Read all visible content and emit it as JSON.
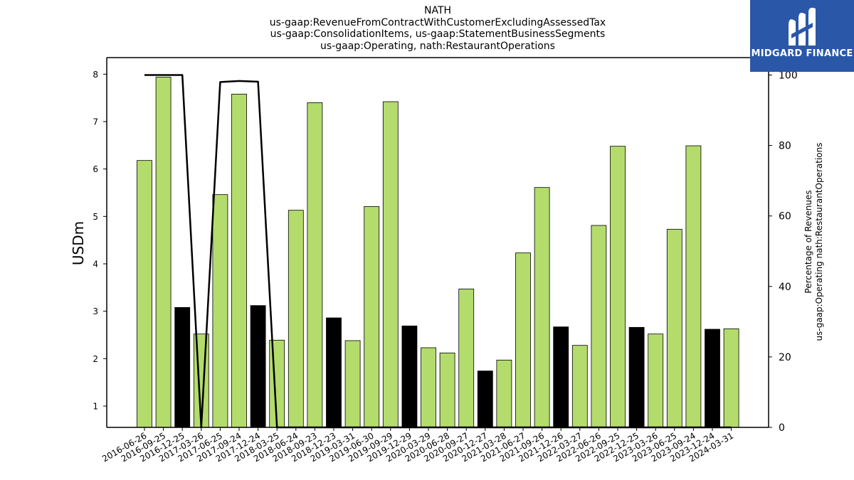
{
  "chart_data": {
    "type": "bar",
    "title_lines": [
      "NATH",
      "us-gaap:RevenueFromContractWithCustomerExcludingAssessedTax",
      "us-gaap:ConsolidationItems, us-gaap:StatementBusinessSegments",
      "us-gaap:Operating, nath:RestaurantOperations"
    ],
    "ylabel": "USDm",
    "ylabel_right": [
      "Percentage of Revenues",
      "us-gaap:Operating nath:RestaurantOperations"
    ],
    "ylim": [
      0.55,
      8.35
    ],
    "yticks": [
      1,
      2,
      3,
      4,
      5,
      6,
      7,
      8
    ],
    "y2lim": [
      0,
      100
    ],
    "y2ticks": [
      0,
      20,
      40,
      60,
      80,
      100
    ],
    "categories": [
      "2016-06-26",
      "2016-09-25",
      "2016-12-25",
      "2017-03-26",
      "2017-06-25",
      "2017-09-24",
      "2017-12-24",
      "2018-03-25",
      "2018-06-24",
      "2018-09-23",
      "2018-12-23",
      "2019-03-31",
      "2019-06-30",
      "2019-09-29",
      "2019-12-29",
      "2020-03-29",
      "2020-06-28",
      "2020-09-27",
      "2020-12-27",
      "2021-03-28",
      "2021-06-27",
      "2021-09-26",
      "2021-12-26",
      "2022-03-27",
      "2022-06-26",
      "2022-09-25",
      "2022-12-25",
      "2023-03-26",
      "2023-06-25",
      "2023-09-24",
      "2023-12-24",
      "2024-03-31"
    ],
    "bars": [
      {
        "x": "2016-06-26",
        "value": 6.18,
        "color": "#b3dc6c"
      },
      {
        "x": "2016-09-25",
        "value": 7.94,
        "color": "#b3dc6c"
      },
      {
        "x": "2016-12-25",
        "value": 3.08,
        "color": "#000000"
      },
      {
        "x": "2017-03-26",
        "value": 2.52,
        "color": "#b3dc6c"
      },
      {
        "x": "2017-06-25",
        "value": 5.46,
        "color": "#b3dc6c"
      },
      {
        "x": "2017-09-24",
        "value": 7.58,
        "color": "#b3dc6c"
      },
      {
        "x": "2017-12-24",
        "value": 3.12,
        "color": "#000000"
      },
      {
        "x": "2018-03-25",
        "value": 2.39,
        "color": "#b3dc6c"
      },
      {
        "x": "2018-06-24",
        "value": 5.13,
        "color": "#b3dc6c"
      },
      {
        "x": "2018-09-23",
        "value": 7.4,
        "color": "#b3dc6c"
      },
      {
        "x": "2018-12-23",
        "value": 2.86,
        "color": "#000000"
      },
      {
        "x": "2019-03-31",
        "value": 2.38,
        "color": "#b3dc6c"
      },
      {
        "x": "2019-06-30",
        "value": 5.21,
        "color": "#b3dc6c"
      },
      {
        "x": "2019-09-29",
        "value": 7.42,
        "color": "#b3dc6c"
      },
      {
        "x": "2019-12-29",
        "value": 2.69,
        "color": "#000000"
      },
      {
        "x": "2020-03-29",
        "value": 2.23,
        "color": "#b3dc6c"
      },
      {
        "x": "2020-06-28",
        "value": 2.12,
        "color": "#b3dc6c"
      },
      {
        "x": "2020-09-27",
        "value": 3.47,
        "color": "#b3dc6c"
      },
      {
        "x": "2020-12-27",
        "value": 1.74,
        "color": "#000000"
      },
      {
        "x": "2021-03-28",
        "value": 1.97,
        "color": "#b3dc6c"
      },
      {
        "x": "2021-06-27",
        "value": 4.23,
        "color": "#b3dc6c"
      },
      {
        "x": "2021-09-26",
        "value": 5.61,
        "color": "#b3dc6c"
      },
      {
        "x": "2021-12-26",
        "value": 2.67,
        "color": "#000000"
      },
      {
        "x": "2022-03-27",
        "value": 2.28,
        "color": "#b3dc6c"
      },
      {
        "x": "2022-06-26",
        "value": 4.81,
        "color": "#b3dc6c"
      },
      {
        "x": "2022-09-25",
        "value": 6.48,
        "color": "#b3dc6c"
      },
      {
        "x": "2022-12-25",
        "value": 2.66,
        "color": "#000000"
      },
      {
        "x": "2023-03-26",
        "value": 2.52,
        "color": "#b3dc6c"
      },
      {
        "x": "2023-06-25",
        "value": 4.73,
        "color": "#b3dc6c"
      },
      {
        "x": "2023-09-24",
        "value": 6.49,
        "color": "#b3dc6c"
      },
      {
        "x": "2023-12-24",
        "value": 2.62,
        "color": "#000000"
      },
      {
        "x": "2024-03-31",
        "value": 2.63,
        "color": "#b3dc6c"
      }
    ],
    "line_percent": [
      100,
      100,
      100,
      0,
      98,
      98.3,
      98.1,
      0,
      0,
      0,
      0,
      0,
      0,
      0,
      0,
      0,
      0,
      0,
      0,
      0,
      0,
      0,
      0,
      0,
      0,
      0,
      0,
      0,
      0,
      0,
      0,
      0
    ],
    "colors": {
      "bar_green": "#b3dc6c",
      "bar_black": "#000000",
      "line": "#000000"
    },
    "grid": false
  },
  "logo": {
    "text": "MIDGARD FINANCE",
    "background": "#2b57a8"
  }
}
